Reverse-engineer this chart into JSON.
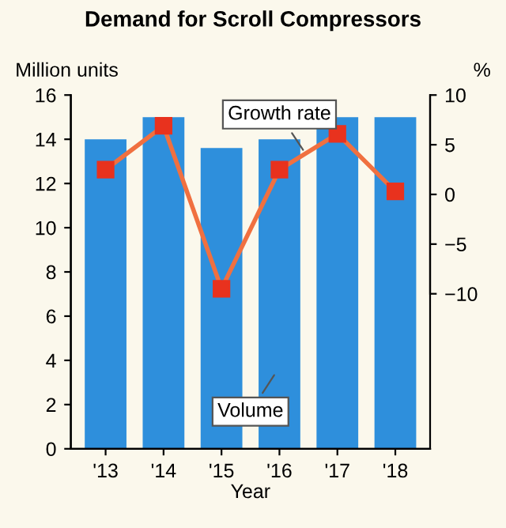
{
  "chart_data": {
    "type": "bar",
    "title": "Demand for Scroll Compressors",
    "xlabel": "Year",
    "ylabel": "Million units",
    "y2label": "%",
    "categories": [
      "'13",
      "'14",
      "'15",
      "'16",
      "'17",
      "'18"
    ],
    "series": [
      {
        "name": "Volume",
        "color": "#2e8fdc",
        "values": [
          14.0,
          15.0,
          13.6,
          14.0,
          15.0,
          15.0
        ]
      },
      {
        "name": "Growth rate",
        "type": "line",
        "axis": "y2",
        "color": "#f07040",
        "marker": "square",
        "values": [
          2.5,
          6.9,
          -9.5,
          2.5,
          6.1,
          0.3
        ]
      }
    ],
    "ylim": [
      0,
      16
    ],
    "yticks": [
      0,
      2,
      4,
      6,
      8,
      10,
      12,
      14,
      16
    ],
    "y2lim": [
      -25.6,
      10
    ],
    "y2ticks": [
      {
        "value": -10,
        "label": "−10"
      },
      {
        "value": -5,
        "label": "−5"
      },
      0,
      5,
      10
    ],
    "grid": false,
    "legend": false
  }
}
